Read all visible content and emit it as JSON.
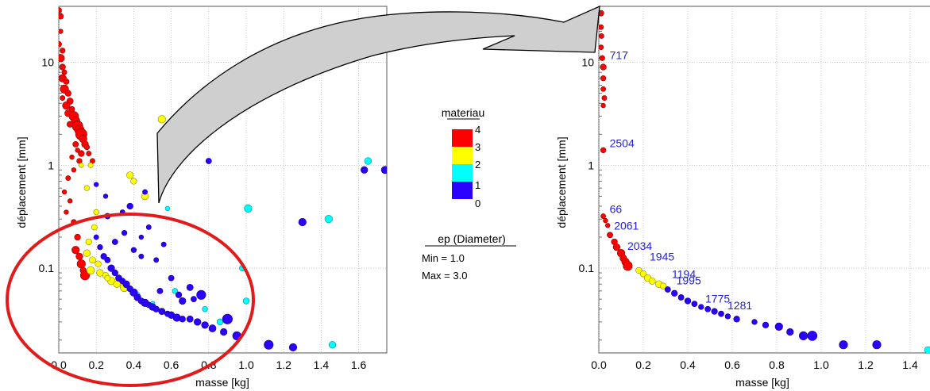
{
  "chart_data": [
    {
      "type": "scatter",
      "xlabel": "masse [kg]",
      "ylabel": "déplacement [mm]",
      "x_ticks": [
        "0.0",
        "0.2",
        "0.4",
        "0.6",
        "0.8",
        "1.0",
        "1.2",
        "1.4",
        "1.6"
      ],
      "y_ticks": [
        "0.1",
        "1",
        "10"
      ],
      "xlim": [
        0,
        1.75
      ],
      "ylim": [
        0.015,
        35
      ],
      "y_scale": "log",
      "grid": true,
      "color_legend": {
        "title": "materiau",
        "labels": [
          "4",
          "3",
          "2",
          "1",
          "0"
        ],
        "colors": [
          "#ff0000",
          "#ffff00",
          "#00ffff",
          "#2a00ff"
        ]
      },
      "size_legend": {
        "title": "ep (Diameter)",
        "min_label": "Min = 1.0",
        "max_label": "Max = 3.0"
      },
      "points": [
        [
          0.0,
          32,
          3,
          1.5
        ],
        [
          0.01,
          28,
          3,
          1.5
        ],
        [
          0.01,
          20,
          3,
          1.2
        ],
        [
          0.0,
          15,
          3,
          1.5
        ],
        [
          0.02,
          13,
          3,
          1.4
        ],
        [
          0.01,
          11,
          3,
          2
        ],
        [
          0.02,
          9,
          3,
          1.6
        ],
        [
          0.03,
          8,
          3,
          1.3
        ],
        [
          0.02,
          7,
          3,
          2
        ],
        [
          0.04,
          6.5,
          3,
          1.5
        ],
        [
          0.03,
          5.5,
          3,
          2.2
        ],
        [
          0.05,
          5,
          3,
          1.6
        ],
        [
          0.02,
          4.5,
          3,
          1.3
        ],
        [
          0.06,
          4.2,
          3,
          1.7
        ],
        [
          0.04,
          3.8,
          3,
          2
        ],
        [
          0.07,
          3.5,
          3,
          1.5
        ],
        [
          0.05,
          3.2,
          3,
          1.8
        ],
        [
          0.08,
          3.0,
          3,
          2.5
        ],
        [
          0.09,
          2.7,
          3,
          2.2
        ],
        [
          0.06,
          2.5,
          3,
          1.6
        ],
        [
          0.1,
          2.4,
          3,
          2.8
        ],
        [
          0.11,
          2.2,
          3,
          2.5
        ],
        [
          0.12,
          2.0,
          3,
          3
        ],
        [
          0.13,
          1.8,
          3,
          2
        ],
        [
          0.09,
          1.6,
          3,
          1.5
        ],
        [
          0.14,
          1.6,
          3,
          1.8
        ],
        [
          0.15,
          1.5,
          3,
          1.4
        ],
        [
          0.1,
          1.4,
          3,
          1.2
        ],
        [
          0.12,
          1.3,
          3,
          1.6
        ],
        [
          0.16,
          1.3,
          3,
          1.3
        ],
        [
          0.07,
          1.2,
          3,
          1.2
        ],
        [
          0.11,
          1.1,
          3,
          1.4
        ],
        [
          0.18,
          1.1,
          3,
          1.3
        ],
        [
          0.08,
          0.9,
          3,
          1.2
        ],
        [
          0.05,
          0.75,
          3,
          1.3
        ],
        [
          0.03,
          0.55,
          3,
          1.2
        ],
        [
          0.06,
          0.45,
          3,
          1.2
        ],
        [
          0.04,
          0.35,
          3,
          1.2
        ],
        [
          0.08,
          0.28,
          3,
          1.4
        ],
        [
          0.1,
          0.2,
          3,
          1.6
        ],
        [
          0.09,
          0.15,
          3,
          2
        ],
        [
          0.11,
          0.13,
          3,
          1.8
        ],
        [
          0.12,
          0.11,
          3,
          2.2
        ],
        [
          0.13,
          0.095,
          3,
          1.6
        ],
        [
          0.14,
          0.085,
          3,
          2.4
        ],
        [
          0.12,
          1.0,
          2,
          1.2
        ],
        [
          0.17,
          1.0,
          2,
          1.3
        ],
        [
          0.15,
          0.6,
          2,
          1.4
        ],
        [
          0.2,
          0.35,
          2,
          1.4
        ],
        [
          0.19,
          0.25,
          2,
          1.5
        ],
        [
          0.16,
          0.18,
          2,
          1.6
        ],
        [
          0.15,
          0.14,
          2,
          1.8
        ],
        [
          0.18,
          0.12,
          2,
          1.7
        ],
        [
          0.21,
          0.11,
          2,
          1.6
        ],
        [
          0.17,
          0.095,
          2,
          2
        ],
        [
          0.22,
          0.09,
          2,
          1.8
        ],
        [
          0.25,
          0.085,
          2,
          1.6
        ],
        [
          0.28,
          0.075,
          2,
          2
        ],
        [
          0.31,
          0.07,
          2,
          1.8
        ],
        [
          0.35,
          0.065,
          2,
          2.2
        ],
        [
          0.38,
          0.8,
          2,
          1.8
        ],
        [
          0.4,
          0.7,
          2,
          1.6
        ],
        [
          0.46,
          0.5,
          2,
          1.9
        ],
        [
          0.55,
          2.8,
          2,
          2
        ],
        [
          0.26,
          0.08,
          2,
          1.5
        ],
        [
          0.58,
          0.38,
          1,
          1.2
        ],
        [
          1.01,
          0.38,
          1,
          2
        ],
        [
          1.44,
          0.3,
          1,
          2
        ],
        [
          1.65,
          1.1,
          1,
          1.8
        ],
        [
          0.36,
          0.068,
          1,
          1.4
        ],
        [
          0.42,
          0.055,
          1,
          1.3
        ],
        [
          0.5,
          0.045,
          1,
          1.3
        ],
        [
          0.62,
          0.06,
          1,
          1.4
        ],
        [
          0.78,
          0.04,
          1,
          1.4
        ],
        [
          0.86,
          0.03,
          1,
          1.6
        ],
        [
          0.98,
          0.1,
          1,
          1.6
        ],
        [
          1.0,
          0.048,
          1,
          1.6
        ],
        [
          1.46,
          0.018,
          1,
          1.8
        ],
        [
          0.2,
          0.2,
          0,
          1.3
        ],
        [
          0.22,
          0.16,
          0,
          1.4
        ],
        [
          0.24,
          0.13,
          0,
          1.6
        ],
        [
          0.26,
          0.12,
          0,
          1.5
        ],
        [
          0.28,
          0.1,
          0,
          1.8
        ],
        [
          0.3,
          0.09,
          0,
          1.6
        ],
        [
          0.32,
          0.08,
          0,
          1.7
        ],
        [
          0.34,
          0.075,
          0,
          1.5
        ],
        [
          0.36,
          0.07,
          0,
          1.8
        ],
        [
          0.38,
          0.063,
          0,
          1.6
        ],
        [
          0.4,
          0.058,
          0,
          2
        ],
        [
          0.42,
          0.052,
          0,
          1.8
        ],
        [
          0.44,
          0.048,
          0,
          1.6
        ],
        [
          0.46,
          0.046,
          0,
          2
        ],
        [
          0.48,
          0.044,
          0,
          1.5
        ],
        [
          0.5,
          0.042,
          0,
          1.8
        ],
        [
          0.52,
          0.04,
          0,
          1.6
        ],
        [
          0.55,
          0.038,
          0,
          1.7
        ],
        [
          0.58,
          0.036,
          0,
          1.5
        ],
        [
          0.6,
          0.035,
          0,
          1.8
        ],
        [
          0.63,
          0.033,
          0,
          2
        ],
        [
          0.66,
          0.032,
          0,
          1.6
        ],
        [
          0.7,
          0.032,
          0,
          1.7
        ],
        [
          0.74,
          0.03,
          0,
          1.8
        ],
        [
          0.78,
          0.028,
          0,
          1.8
        ],
        [
          0.82,
          0.026,
          0,
          1.9
        ],
        [
          0.9,
          0.032,
          0,
          2.6
        ],
        [
          0.88,
          0.024,
          0,
          1.8
        ],
        [
          0.95,
          0.022,
          0,
          2.2
        ],
        [
          1.12,
          0.018,
          0,
          2.4
        ],
        [
          1.25,
          0.017,
          0,
          2
        ],
        [
          1.3,
          0.28,
          0,
          2
        ],
        [
          1.63,
          0.9,
          0,
          1.8
        ],
        [
          1.74,
          0.9,
          0,
          1.9
        ],
        [
          0.8,
          1.1,
          0,
          1.5
        ],
        [
          0.46,
          0.55,
          0,
          1.3
        ],
        [
          0.38,
          0.4,
          0,
          1.6
        ],
        [
          0.26,
          0.32,
          0,
          1.5
        ],
        [
          0.35,
          0.22,
          0,
          1.4
        ],
        [
          0.3,
          0.18,
          0,
          1.5
        ],
        [
          0.44,
          0.13,
          0,
          1.3
        ],
        [
          0.52,
          0.12,
          0,
          1.3
        ],
        [
          0.6,
          0.08,
          0,
          1.5
        ],
        [
          0.7,
          0.065,
          0,
          1.7
        ],
        [
          0.66,
          0.048,
          0,
          1.8
        ],
        [
          0.72,
          0.05,
          0,
          1.5
        ],
        [
          0.25,
          0.5,
          0,
          1.2
        ],
        [
          0.2,
          0.65,
          0,
          1.2
        ],
        [
          0.44,
          0.2,
          0,
          1.2
        ],
        [
          0.48,
          0.25,
          0,
          1.3
        ],
        [
          0.56,
          0.17,
          0,
          1.3
        ],
        [
          0.34,
          0.35,
          0,
          1.3
        ],
        [
          0.4,
          0.15,
          0,
          1.4
        ],
        [
          0.54,
          0.06,
          0,
          1.5
        ],
        [
          0.64,
          0.055,
          0,
          1.6
        ],
        [
          0.76,
          0.055,
          0,
          2.4
        ]
      ]
    },
    {
      "type": "scatter",
      "xlabel": "masse [kg]",
      "ylabel": "déplacement [mm]",
      "x_ticks": [
        "0.0",
        "0.2",
        "0.4",
        "0.6",
        "0.8",
        "1.0",
        "1.2",
        "1.4"
      ],
      "y_ticks": [
        "0.1",
        "1",
        "10"
      ],
      "xlim": [
        0,
        1.5
      ],
      "ylim": [
        0.015,
        35
      ],
      "y_scale": "log",
      "grid": true,
      "annotations": [
        {
          "label": "717",
          "x": 0.02,
          "y": 10
        },
        {
          "label": "2504",
          "x": 0.02,
          "y": 1.4
        },
        {
          "label": "66",
          "x": 0.02,
          "y": 0.32
        },
        {
          "label": "2061",
          "x": 0.04,
          "y": 0.22
        },
        {
          "label": "2034",
          "x": 0.1,
          "y": 0.14
        },
        {
          "label": "1945",
          "x": 0.2,
          "y": 0.11
        },
        {
          "label": "1194",
          "x": 0.3,
          "y": 0.075
        },
        {
          "label": "1995",
          "x": 0.32,
          "y": 0.065
        },
        {
          "label": "1775",
          "x": 0.45,
          "y": 0.043
        },
        {
          "label": "1281",
          "x": 0.55,
          "y": 0.037
        }
      ],
      "points": [
        [
          0.01,
          30,
          3,
          1.5
        ],
        [
          0.01,
          22,
          3,
          1.3
        ],
        [
          0.012,
          18,
          3,
          1.3
        ],
        [
          0.01,
          14,
          3,
          1.3
        ],
        [
          0.015,
          11,
          3,
          1.4
        ],
        [
          0.02,
          9,
          3,
          1.6
        ],
        [
          0.02,
          7,
          3,
          1.4
        ],
        [
          0.02,
          5.5,
          3,
          1.3
        ],
        [
          0.025,
          4.5,
          3,
          1.3
        ],
        [
          0.02,
          3.8,
          3,
          1.2
        ],
        [
          0.02,
          1.4,
          3,
          1.4
        ],
        [
          0.02,
          0.32,
          3,
          1.3
        ],
        [
          0.03,
          0.29,
          3,
          1.2
        ],
        [
          0.04,
          0.26,
          3,
          1.2
        ],
        [
          0.05,
          0.21,
          3,
          1.5
        ],
        [
          0.07,
          0.18,
          3,
          1.6
        ],
        [
          0.08,
          0.16,
          3,
          1.8
        ],
        [
          0.1,
          0.14,
          3,
          2
        ],
        [
          0.11,
          0.125,
          3,
          1.8
        ],
        [
          0.12,
          0.115,
          3,
          2
        ],
        [
          0.13,
          0.105,
          3,
          2.4
        ],
        [
          0.18,
          0.095,
          2,
          1.6
        ],
        [
          0.2,
          0.088,
          2,
          1.6
        ],
        [
          0.22,
          0.08,
          2,
          1.8
        ],
        [
          0.24,
          0.075,
          2,
          1.7
        ],
        [
          0.27,
          0.07,
          2,
          1.8
        ],
        [
          0.29,
          0.067,
          2,
          1.6
        ],
        [
          0.31,
          0.062,
          0,
          1.5
        ],
        [
          0.34,
          0.057,
          0,
          1.6
        ],
        [
          0.37,
          0.052,
          0,
          1.5
        ],
        [
          0.4,
          0.048,
          0,
          1.6
        ],
        [
          0.43,
          0.045,
          0,
          1.5
        ],
        [
          0.46,
          0.042,
          0,
          1.4
        ],
        [
          0.49,
          0.04,
          0,
          1.5
        ],
        [
          0.52,
          0.038,
          0,
          1.6
        ],
        [
          0.55,
          0.036,
          0,
          1.5
        ],
        [
          0.58,
          0.034,
          0,
          1.4
        ],
        [
          0.62,
          0.032,
          0,
          1.6
        ],
        [
          0.7,
          0.03,
          0,
          1.4
        ],
        [
          0.75,
          0.028,
          0,
          1.6
        ],
        [
          0.81,
          0.027,
          0,
          2
        ],
        [
          0.86,
          0.024,
          0,
          1.8
        ],
        [
          0.92,
          0.022,
          0,
          2.2
        ],
        [
          0.96,
          0.022,
          0,
          2.5
        ],
        [
          1.1,
          0.018,
          0,
          2.2
        ],
        [
          1.25,
          0.018,
          0,
          2.2
        ],
        [
          1.48,
          0.016,
          1,
          1.8
        ]
      ]
    }
  ]
}
